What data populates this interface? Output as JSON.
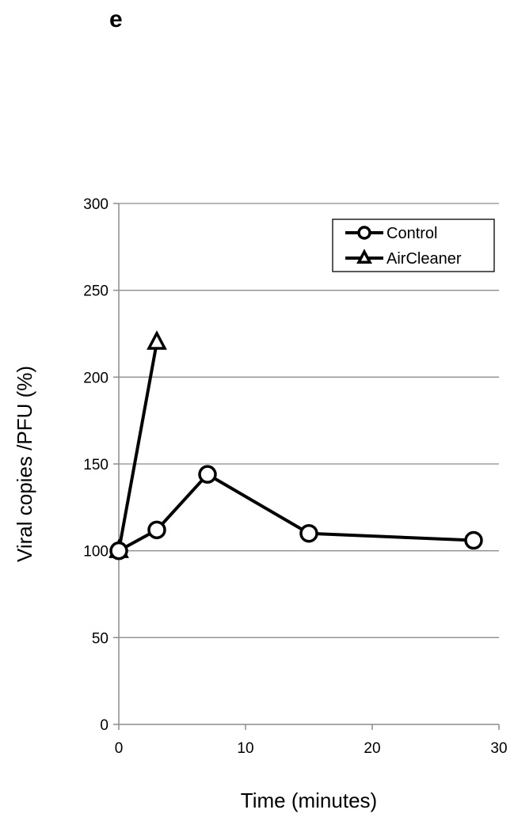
{
  "panel_label": "e",
  "chart_data": {
    "type": "line",
    "title": "",
    "xlabel": "Time (minutes)",
    "ylabel": "Viral copies /PFU (%)",
    "xlim": [
      0,
      30
    ],
    "ylim": [
      0,
      300
    ],
    "xticks": [
      0,
      10,
      20,
      30
    ],
    "yticks": [
      0,
      50,
      100,
      150,
      200,
      250,
      300
    ],
    "grid": "horizontal",
    "legend_position": "top-right",
    "series": [
      {
        "name": "Control",
        "marker": "circle",
        "color": "#000000",
        "x": [
          0,
          3,
          7,
          15,
          28
        ],
        "y": [
          100,
          112,
          144,
          110,
          106
        ]
      },
      {
        "name": "AirCleaner",
        "marker": "triangle",
        "color": "#000000",
        "x": [
          0,
          3
        ],
        "y": [
          100,
          220
        ]
      }
    ]
  }
}
